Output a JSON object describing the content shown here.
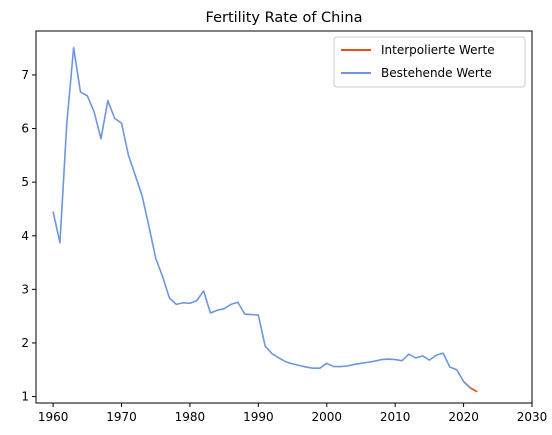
{
  "chart_data": {
    "type": "line",
    "title": "Fertility Rate of China",
    "xlabel": "",
    "ylabel": "",
    "xlim": [
      1957.5,
      2030
    ],
    "ylim": [
      0.88,
      7.82
    ],
    "xticks": [
      1960,
      1970,
      1980,
      1990,
      2000,
      2010,
      2020,
      2030
    ],
    "yticks": [
      1,
      2,
      3,
      4,
      5,
      6,
      7
    ],
    "grid": false,
    "legend_position": "top-right",
    "series": [
      {
        "name": "Interpolierte Werte",
        "color": "#ee4b1c",
        "x": [
          2020,
          2021,
          2022
        ],
        "y": [
          1.28,
          1.16,
          1.09
        ]
      },
      {
        "name": "Bestehende Werte",
        "color": "#6c97de",
        "x": [
          1960,
          1961,
          1962,
          1963,
          1964,
          1965,
          1966,
          1967,
          1968,
          1969,
          1970,
          1971,
          1972,
          1973,
          1974,
          1975,
          1976,
          1977,
          1978,
          1979,
          1980,
          1981,
          1982,
          1983,
          1984,
          1985,
          1986,
          1987,
          1988,
          1989,
          1990,
          1991,
          1992,
          1993,
          1994,
          1995,
          1996,
          1997,
          1998,
          1999,
          2000,
          2001,
          2002,
          2003,
          2004,
          2005,
          2006,
          2007,
          2008,
          2009,
          2010,
          2011,
          2012,
          2013,
          2014,
          2015,
          2016,
          2017,
          2018,
          2019,
          2020,
          2021
        ],
        "y": [
          4.45,
          3.87,
          6.09,
          7.51,
          6.68,
          6.61,
          6.31,
          5.81,
          6.52,
          6.19,
          6.1,
          5.51,
          5.13,
          4.75,
          4.18,
          3.58,
          3.24,
          2.84,
          2.72,
          2.75,
          2.74,
          2.79,
          2.97,
          2.56,
          2.61,
          2.64,
          2.72,
          2.76,
          2.54,
          2.53,
          2.52,
          1.94,
          1.8,
          1.72,
          1.65,
          1.61,
          1.58,
          1.55,
          1.53,
          1.53,
          1.62,
          1.56,
          1.56,
          1.57,
          1.6,
          1.62,
          1.64,
          1.66,
          1.69,
          1.7,
          1.69,
          1.67,
          1.79,
          1.72,
          1.76,
          1.68,
          1.77,
          1.81,
          1.55,
          1.5,
          1.28,
          1.16
        ]
      }
    ]
  }
}
